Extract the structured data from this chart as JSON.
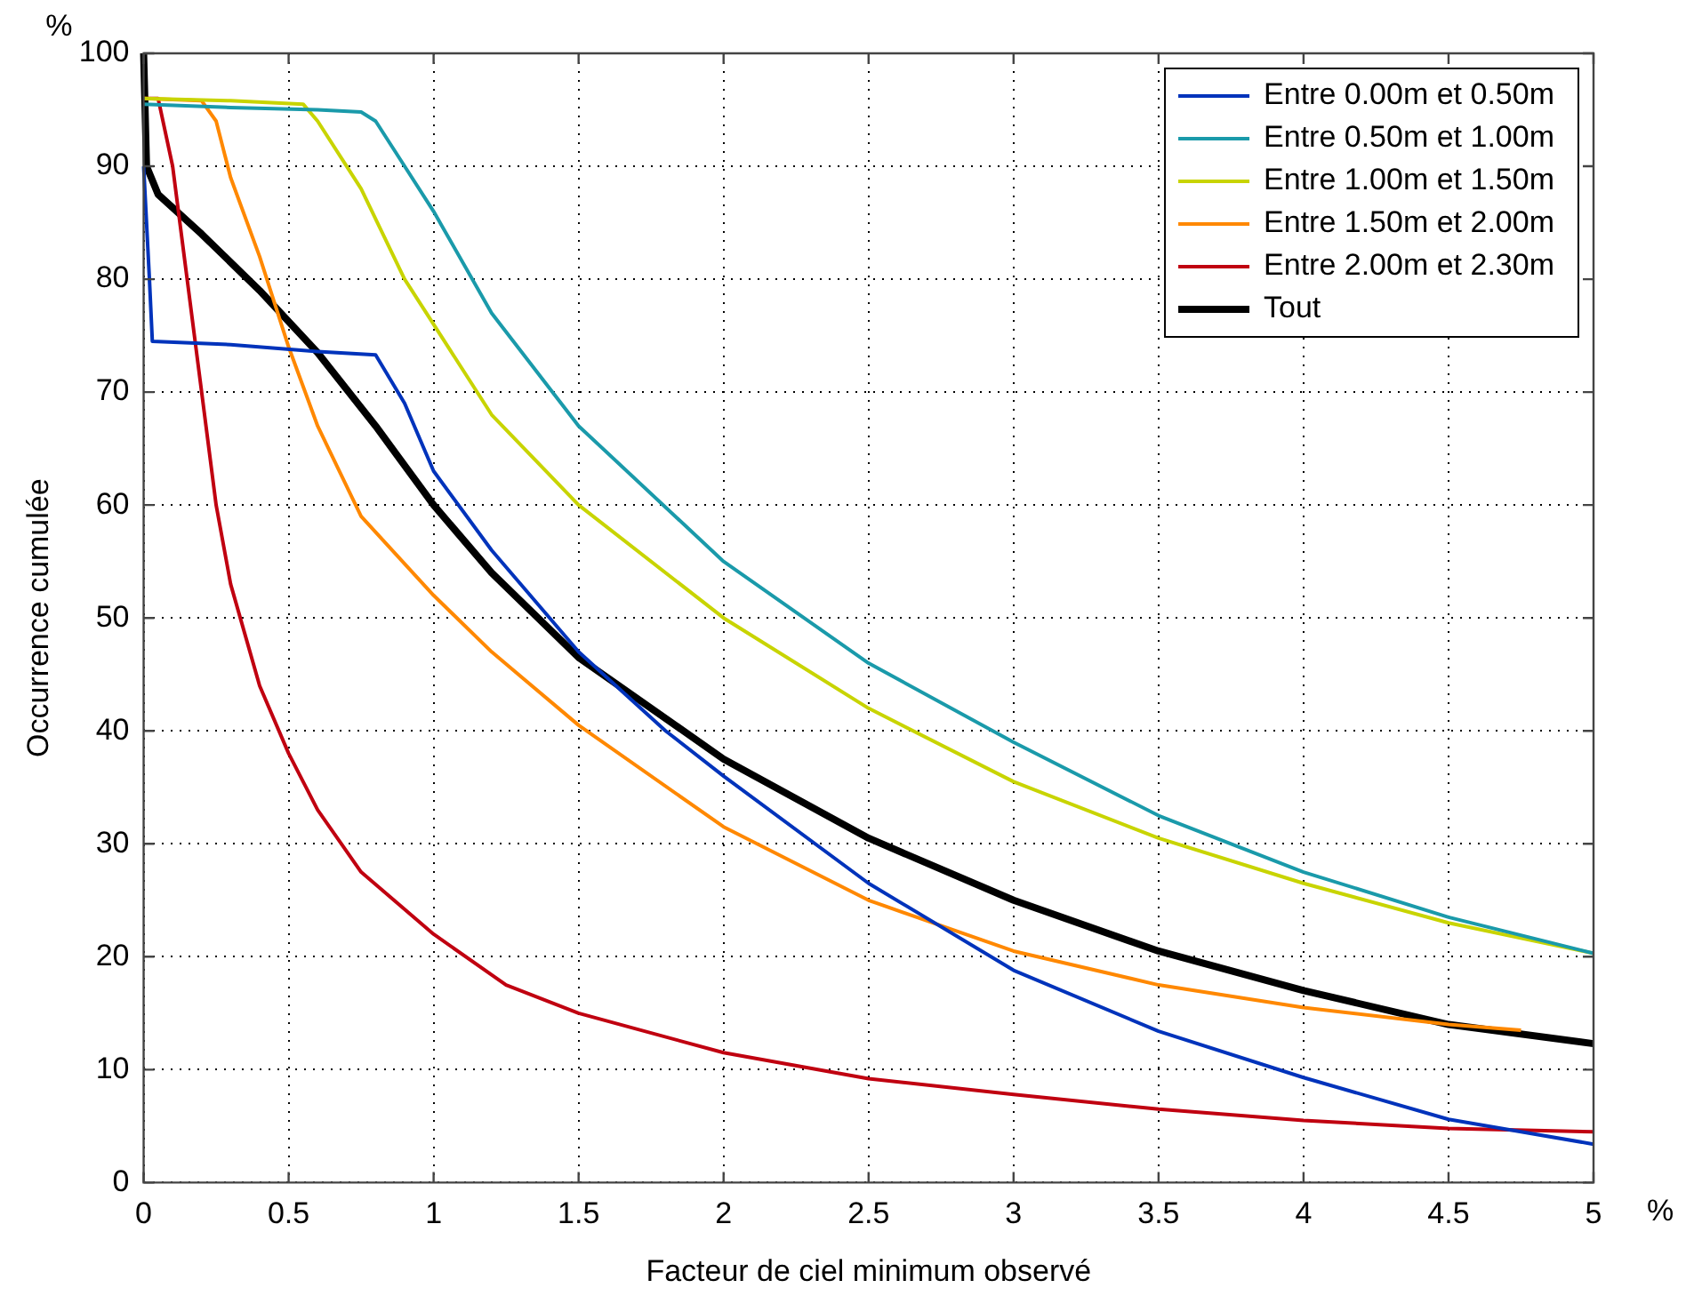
{
  "chart_data": {
    "type": "line",
    "xlabel": "Facteur de ciel minimum observé",
    "ylabel": "Occurrence cumulée",
    "annotations": [
      "%",
      "%"
    ],
    "xlim": [
      0,
      5
    ],
    "ylim": [
      0,
      100
    ],
    "xticks": [
      0,
      0.5,
      1,
      1.5,
      2,
      2.5,
      3,
      3.5,
      4,
      4.5,
      5
    ],
    "yticks": [
      0,
      10,
      20,
      30,
      40,
      50,
      60,
      70,
      80,
      90,
      100
    ],
    "grid": true,
    "legend": "top right",
    "marker": "none",
    "line_style": "solid",
    "series": [
      {
        "name": "Entre 0.00m et 0.50m",
        "color": "#0033bb",
        "x": [
          0,
          0.02,
          0.03,
          0.3,
          0.6,
          0.8,
          0.9,
          1,
          1.2,
          1.5,
          1.8,
          2,
          2.5,
          3,
          3.5,
          4,
          4.5,
          5
        ],
        "values": [
          90,
          80,
          74.5,
          74.2,
          73.6,
          73.3,
          69,
          63,
          56,
          47,
          40,
          36,
          26.5,
          18.8,
          13.4,
          9.3,
          5.6,
          3.4
        ]
      },
      {
        "name": "Entre 0.50m et 1.00m",
        "color": "#1a9aaa",
        "x": [
          0,
          0.3,
          0.6,
          0.75,
          0.8,
          0.9,
          1,
          1.2,
          1.5,
          2,
          2.5,
          3,
          3.5,
          4,
          4.5,
          5
        ],
        "values": [
          95.5,
          95.2,
          95,
          94.8,
          94,
          90,
          86,
          77,
          67,
          55,
          46,
          39,
          32.5,
          27.5,
          23.5,
          20.3
        ]
      },
      {
        "name": "Entre 1.00m et 1.50m",
        "color": "#c8d400",
        "x": [
          0,
          0.3,
          0.55,
          0.6,
          0.75,
          0.9,
          1,
          1.2,
          1.5,
          2,
          2.5,
          3,
          3.5,
          4,
          4.5,
          5
        ],
        "values": [
          96,
          95.8,
          95.5,
          94,
          88,
          80,
          76,
          68,
          60,
          50,
          42,
          35.5,
          30.5,
          26.5,
          23,
          20.3
        ]
      },
      {
        "name": "Entre 1.50m et 2.00m",
        "color": "#ff8800",
        "x": [
          0,
          0.2,
          0.25,
          0.3,
          0.4,
          0.5,
          0.6,
          0.75,
          1,
          1.2,
          1.5,
          2,
          2.5,
          3,
          3.5,
          4,
          4.5,
          4.75
        ],
        "values": [
          96,
          95.8,
          94,
          89,
          82,
          74,
          67,
          59,
          52,
          47,
          40.5,
          31.5,
          25,
          20.5,
          17.5,
          15.5,
          14,
          13.5
        ]
      },
      {
        "name": "Entre 2.00m et 2.30m",
        "color": "#c00010",
        "x": [
          0,
          0.05,
          0.1,
          0.15,
          0.2,
          0.25,
          0.3,
          0.4,
          0.5,
          0.6,
          0.75,
          1,
          1.25,
          1.5,
          2,
          2.5,
          3,
          3.5,
          4,
          4.5,
          5
        ],
        "values": [
          96,
          96,
          90,
          80,
          70,
          60,
          53,
          44,
          38,
          33,
          27.5,
          22,
          17.5,
          15,
          11.5,
          9.2,
          7.8,
          6.5,
          5.5,
          4.8,
          4.5
        ]
      },
      {
        "name": "Tout",
        "color": "#000000",
        "x": [
          0,
          0.01,
          0.05,
          0.2,
          0.4,
          0.6,
          0.8,
          1,
          1.2,
          1.5,
          2,
          2.5,
          3,
          3.5,
          4,
          4.5,
          5
        ],
        "values": [
          100,
          90,
          87.5,
          84,
          79,
          73.5,
          67,
          60,
          54,
          46.5,
          37.5,
          30.5,
          25,
          20.5,
          17,
          14,
          12.3
        ]
      }
    ]
  }
}
